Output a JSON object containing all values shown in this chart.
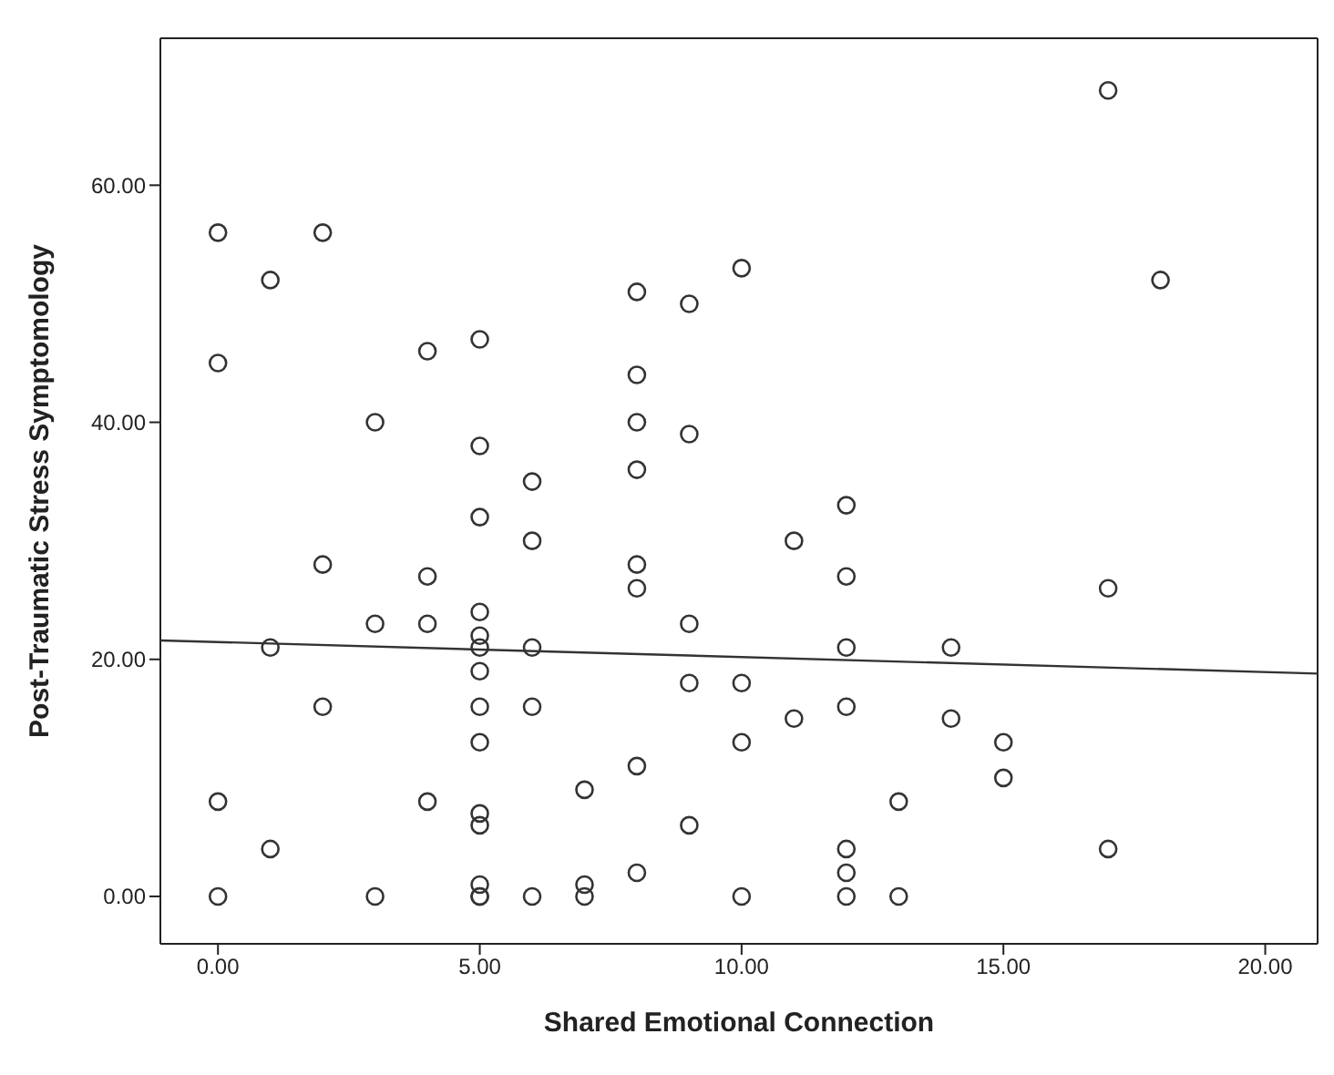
{
  "chart_data": {
    "type": "scatter",
    "xlabel": "Shared Emotional Connection",
    "ylabel": "Post-Traumatic Stress Symptomology",
    "marker": "circle",
    "xlim": [
      -1.1,
      21
    ],
    "ylim": [
      -4,
      72.4
    ],
    "xticks": [
      {
        "value": 0,
        "label": "0.00"
      },
      {
        "value": 5,
        "label": "5.00"
      },
      {
        "value": 10,
        "label": "10.00"
      },
      {
        "value": 15,
        "label": "15.00"
      },
      {
        "value": 20,
        "label": "20.00"
      }
    ],
    "yticks": [
      {
        "value": 0,
        "label": "0.00"
      },
      {
        "value": 20,
        "label": "20.00"
      },
      {
        "value": 40,
        "label": "40.00"
      },
      {
        "value": 60,
        "label": "60.00"
      }
    ],
    "series": [
      {
        "color": "#333333",
        "x": [
          0,
          0,
          0,
          0,
          1,
          1,
          1,
          2,
          2,
          2,
          3,
          3,
          3,
          4,
          4,
          4,
          4,
          5,
          5,
          5,
          5,
          5,
          5,
          5,
          5,
          5,
          5,
          5,
          5,
          5,
          5,
          6,
          6,
          6,
          6,
          6,
          7,
          7,
          7,
          8,
          8,
          8,
          8,
          8,
          8,
          8,
          8,
          9,
          9,
          9,
          9,
          9,
          10,
          10,
          10,
          10,
          11,
          11,
          12,
          12,
          12,
          12,
          12,
          12,
          12,
          13,
          13,
          14,
          14,
          15,
          15,
          17,
          17,
          17,
          18
        ],
        "values": [
          56,
          45,
          8,
          0,
          52,
          21,
          4,
          56,
          28,
          16,
          40,
          23,
          0,
          46,
          27,
          23,
          8,
          47,
          38,
          32,
          24,
          22,
          21,
          19,
          16,
          13,
          7,
          6,
          1,
          0,
          0,
          35,
          30,
          21,
          16,
          0,
          9,
          1,
          0,
          51,
          44,
          40,
          36,
          28,
          26,
          11,
          2,
          50,
          39,
          23,
          18,
          6,
          53,
          18,
          13,
          0,
          30,
          15,
          33,
          27,
          21,
          16,
          4,
          2,
          0,
          8,
          0,
          21,
          15,
          13,
          10,
          68,
          26,
          4,
          52
        ]
      },
      {
        "type": "line",
        "marker": "none",
        "color": "#333333",
        "x": [
          -1.1,
          21
        ],
        "values": [
          21.6,
          18.8
        ]
      }
    ]
  }
}
